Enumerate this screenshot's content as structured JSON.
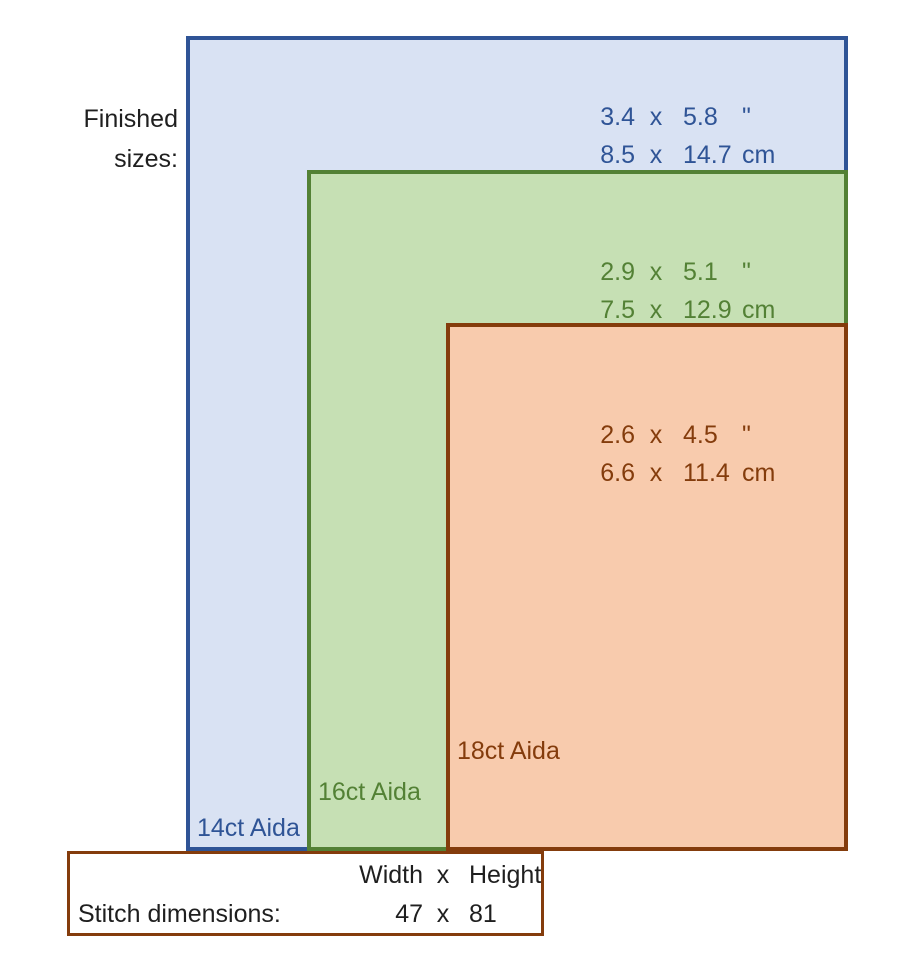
{
  "finished_sizes_label": {
    "line1": "Finished",
    "line2": "sizes:"
  },
  "fabrics": [
    {
      "name": "14ct Aida",
      "inches": {
        "width": "3.4",
        "sep": "x",
        "height": "5.8",
        "unit": "\""
      },
      "cm": {
        "width": "8.5",
        "sep": "x",
        "height": "14.7",
        "unit": "cm"
      },
      "fill": "#D9E2F3",
      "border": "#2F5496",
      "text_color": "#2F5496"
    },
    {
      "name": "16ct Aida",
      "inches": {
        "width": "2.9",
        "sep": "x",
        "height": "5.1",
        "unit": "\""
      },
      "cm": {
        "width": "7.5",
        "sep": "x",
        "height": "12.9",
        "unit": "cm"
      },
      "fill": "#C6E0B4",
      "border": "#538135",
      "text_color": "#538135"
    },
    {
      "name": "18ct Aida",
      "inches": {
        "width": "2.6",
        "sep": "x",
        "height": "4.5",
        "unit": "\""
      },
      "cm": {
        "width": "6.6",
        "sep": "x",
        "height": "11.4",
        "unit": "cm"
      },
      "fill": "#F8CBAD",
      "border": "#843C0C",
      "text_color": "#843C0C"
    }
  ],
  "stitch_box": {
    "border": "#843C0C",
    "header": {
      "label": "",
      "width": "Width",
      "sep": "x",
      "height": "Height"
    },
    "row": {
      "label": "Stitch dimensions:",
      "width": "47",
      "sep": "x",
      "height": "81"
    }
  }
}
